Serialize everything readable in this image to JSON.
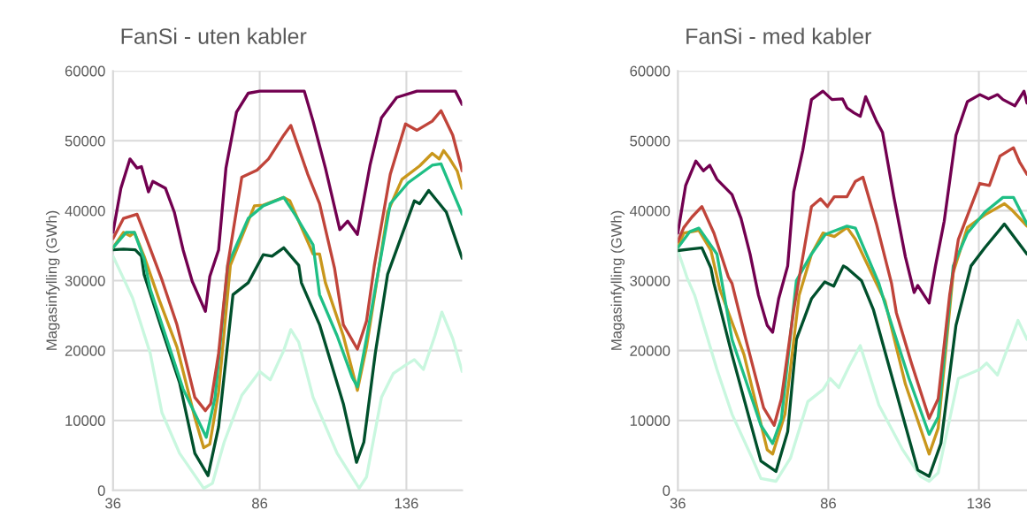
{
  "chart_data": [
    {
      "type": "line",
      "title": "FanSi - uten kabler",
      "ylabel": "Magasinfylling (GWh)",
      "xlim": [
        36,
        155
      ],
      "xticks": [
        36,
        86,
        136
      ],
      "ylim": [
        0,
        60000
      ],
      "yticks": [
        0,
        10000,
        20000,
        30000,
        40000,
        50000,
        60000
      ],
      "grid": true,
      "series": [
        {
          "color": "#c9f7df",
          "x": [
            36,
            39.6,
            42.7,
            48.7,
            52.7,
            58.7,
            66.9,
            69.9,
            73.9,
            79.9,
            86,
            89.6,
            94.2,
            96.6,
            99.3,
            104.2,
            112.4,
            117.5,
            119.9,
            122.4,
            127.5,
            131.5,
            135.7,
            138.7,
            141.8,
            145.7,
            148.1,
            151.8,
            155
          ],
          "values": [
            33500,
            30300,
            27500,
            19600,
            11100,
            5300,
            300,
            1000,
            6900,
            13600,
            17000,
            15800,
            20000,
            23000,
            21200,
            13300,
            5300,
            1900,
            300,
            1900,
            13300,
            16700,
            17900,
            18700,
            17300,
            22100,
            25500,
            21700,
            17000
          ]
        },
        {
          "color": "#00502c",
          "x": [
            36,
            39.6,
            43.6,
            45.7,
            46.6,
            52.7,
            58.7,
            63.9,
            68.4,
            72,
            76.9,
            82.1,
            87.2,
            90.2,
            94.2,
            99.3,
            100.2,
            106.4,
            114.5,
            119,
            121.5,
            125.4,
            129.6,
            138.7,
            140.5,
            143.6,
            149.6,
            155
          ],
          "values": [
            34400,
            34500,
            34400,
            33500,
            30900,
            23000,
            15400,
            5300,
            2100,
            9100,
            28000,
            29700,
            33700,
            33500,
            34700,
            32200,
            29700,
            23700,
            12400,
            4000,
            6900,
            19600,
            30900,
            41400,
            41000,
            42900,
            39800,
            33200
          ]
        },
        {
          "color": "#c9971c",
          "x": [
            36,
            39.6,
            41.8,
            43.3,
            46.6,
            51.8,
            57.8,
            63.9,
            66.9,
            69,
            72,
            76,
            84.2,
            87.2,
            94.2,
            96.3,
            104.2,
            106.4,
            108.4,
            114.5,
            118.4,
            119.3,
            122.4,
            129.6,
            134.5,
            140.5,
            144.8,
            147.2,
            148.7,
            150.8,
            153.3,
            155
          ],
          "values": [
            34700,
            36900,
            36400,
            36900,
            33500,
            27200,
            20500,
            10400,
            6100,
            6600,
            14100,
            32200,
            40700,
            40800,
            41900,
            41400,
            33800,
            33800,
            29700,
            22100,
            15800,
            14300,
            20500,
            39800,
            44500,
            46400,
            48200,
            47400,
            48600,
            47400,
            45700,
            43200
          ]
        },
        {
          "color": "#1fbf85",
          "x": [
            36,
            40.5,
            43.3,
            46.6,
            48.7,
            52.7,
            59.9,
            67.8,
            70.8,
            75.1,
            82.1,
            87.2,
            94.2,
            98.1,
            104.2,
            106.4,
            112.4,
            117.5,
            119.3,
            122.4,
            130.5,
            136.6,
            144.8,
            147.8,
            151.8,
            155
          ],
          "values": [
            34700,
            36900,
            36900,
            33100,
            28800,
            23700,
            14500,
            7600,
            13300,
            32200,
            38900,
            40700,
            41900,
            39400,
            35100,
            28000,
            22100,
            16200,
            14800,
            21700,
            41000,
            44000,
            46500,
            46700,
            42700,
            39500
          ]
        },
        {
          "color": "#c0443a",
          "x": [
            36,
            39.6,
            44.2,
            46.6,
            52.7,
            57.8,
            63.9,
            67.5,
            69.3,
            72,
            75.1,
            79.9,
            85.1,
            89,
            94.2,
            96.6,
            102.4,
            106.4,
            111.5,
            114.5,
            119.3,
            122.4,
            125.1,
            130.5,
            135.7,
            139.6,
            144.8,
            147.8,
            151.8,
            155
          ],
          "values": [
            36000,
            38900,
            39500,
            36900,
            30100,
            23700,
            13300,
            11400,
            12400,
            19600,
            32200,
            44800,
            45800,
            47400,
            50800,
            52200,
            45200,
            41000,
            31800,
            23700,
            20200,
            24200,
            32200,
            45200,
            52400,
            51500,
            52800,
            54300,
            50800,
            45700
          ]
        },
        {
          "color": "#720050",
          "x": [
            36,
            38.7,
            41.8,
            44.2,
            45.7,
            48.1,
            49.6,
            53.9,
            56.9,
            59.9,
            63,
            67.5,
            69,
            72,
            74.5,
            78.1,
            82.1,
            86,
            94.2,
            101.2,
            104.2,
            108.4,
            113.3,
            116,
            119.3,
            123.6,
            127.5,
            132.7,
            139.6,
            152.7,
            155
          ],
          "values": [
            36900,
            43200,
            47400,
            46100,
            46300,
            42700,
            44200,
            43200,
            39800,
            34400,
            29900,
            25600,
            30600,
            34400,
            46100,
            54100,
            56800,
            57100,
            57100,
            57100,
            52800,
            46100,
            37300,
            38500,
            36600,
            46500,
            53300,
            56200,
            57100,
            57100,
            55200
          ]
        }
      ]
    },
    {
      "type": "line",
      "title": "FanSi - med kabler",
      "ylabel": "Magasinfylling (GWh)",
      "xlim": [
        36,
        152
      ],
      "xticks": [
        36,
        86,
        136
      ],
      "ylim": [
        0,
        60000
      ],
      "yticks": [
        0,
        10000,
        20000,
        30000,
        40000,
        50000,
        60000
      ],
      "grid": true,
      "series": [
        {
          "color": "#c9f7df",
          "x": [
            36,
            38,
            39,
            41.6,
            49,
            54,
            60.7,
            63.6,
            68.6,
            73.4,
            79.2,
            84.2,
            86.6,
            89.5,
            93,
            96.6,
            102.8,
            110.7,
            116.6,
            119.5,
            122.5,
            129.2,
            136.3,
            138.6,
            142.2,
            149,
            152
          ],
          "values": [
            34300,
            31800,
            30500,
            27900,
            17300,
            10900,
            4600,
            1700,
            1300,
            4600,
            12700,
            14400,
            16000,
            14700,
            17800,
            20700,
            12200,
            5800,
            2000,
            1300,
            2500,
            16000,
            17300,
            18200,
            16500,
            24300,
            21600
          ]
        },
        {
          "color": "#00502c",
          "x": [
            36,
            40,
            44,
            47,
            48,
            54,
            63.6,
            68.6,
            72.5,
            75.4,
            80.4,
            84.8,
            87.8,
            91,
            92.2,
            97,
            101,
            107.8,
            115.7,
            119.5,
            123.4,
            128.4,
            133.4,
            138,
            144.5,
            152
          ],
          "values": [
            34300,
            34500,
            34700,
            31800,
            29600,
            19400,
            4200,
            2700,
            8400,
            21600,
            27400,
            29800,
            29200,
            32100,
            31800,
            30000,
            25800,
            15200,
            2900,
            2000,
            6700,
            23600,
            32100,
            34700,
            38100,
            33800
          ]
        },
        {
          "color": "#c9971c",
          "x": [
            36,
            38,
            40.7,
            43,
            47,
            50,
            58,
            65.7,
            67.5,
            71.6,
            76.3,
            80.4,
            84.2,
            88,
            92.2,
            95,
            102,
            104.8,
            111.6,
            119.5,
            122.5,
            127.5,
            132.2,
            138,
            144.5,
            147,
            152
          ],
          "values": [
            34900,
            36800,
            37000,
            37200,
            34300,
            28700,
            19400,
            5800,
            5200,
            10900,
            27900,
            33800,
            36800,
            36300,
            37600,
            35900,
            29600,
            27100,
            15200,
            5200,
            8900,
            31200,
            37600,
            39400,
            41000,
            40100,
            37800
          ]
        },
        {
          "color": "#1fbf85",
          "x": [
            36,
            40,
            43,
            49,
            54,
            63.6,
            67.5,
            70.4,
            75.4,
            80.4,
            85,
            92.2,
            95,
            102.8,
            104.8,
            112.8,
            119.5,
            122.5,
            127.5,
            132.2,
            138,
            144,
            147.5,
            152
          ],
          "values": [
            34700,
            37000,
            37500,
            33800,
            21600,
            9300,
            6700,
            10200,
            30000,
            33800,
            36600,
            37800,
            37500,
            29600,
            26700,
            16000,
            8000,
            10500,
            32100,
            36800,
            39800,
            41900,
            41900,
            38100
          ]
        },
        {
          "color": "#c0443a",
          "x": [
            36,
            38,
            40.7,
            44,
            48,
            52.8,
            54,
            58.6,
            64.5,
            68,
            70.4,
            74.5,
            80.4,
            83.4,
            85.7,
            88,
            92.2,
            95,
            97.5,
            102,
            107,
            108.6,
            113.6,
            119.5,
            122.5,
            126.3,
            129.2,
            136.3,
            139.5,
            143,
            147.5,
            149.5,
            152
          ],
          "values": [
            35600,
            37600,
            39100,
            40600,
            36800,
            30500,
            29600,
            21600,
            11800,
            9300,
            13100,
            25800,
            40600,
            41700,
            40600,
            42000,
            42000,
            44200,
            44800,
            38100,
            29600,
            25400,
            18200,
            10300,
            13100,
            27900,
            35900,
            43900,
            43600,
            47800,
            49000,
            47000,
            45200
          ]
        },
        {
          "color": "#720050",
          "x": [
            36,
            38.6,
            42,
            44.5,
            46.6,
            49,
            54,
            57,
            60,
            62.8,
            65.7,
            67.5,
            69.5,
            72.5,
            74.5,
            77.5,
            80.4,
            84.2,
            87.2,
            90.7,
            92.2,
            94.5,
            96.6,
            98.4,
            102,
            104,
            107.8,
            111.6,
            114.5,
            115.7,
            119.5,
            121.6,
            124.5,
            128.4,
            132.2,
            136.3,
            139.2,
            142.2,
            144,
            148,
            151,
            152
          ],
          "values": [
            36800,
            43600,
            47100,
            45700,
            46500,
            44500,
            42300,
            38900,
            33800,
            27900,
            23600,
            22600,
            27400,
            32100,
            42700,
            48600,
            55900,
            57100,
            55900,
            56000,
            54700,
            54000,
            53500,
            56300,
            52800,
            51200,
            41900,
            33400,
            28300,
            29300,
            26800,
            32100,
            38500,
            50800,
            55600,
            56600,
            56000,
            56600,
            55900,
            55000,
            57100,
            55400
          ]
        }
      ]
    }
  ]
}
